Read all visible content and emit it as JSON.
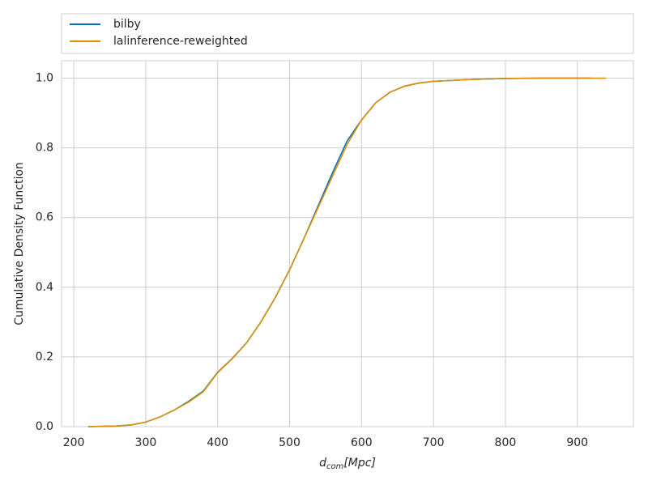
{
  "chart_data": {
    "type": "line",
    "xlabel": {
      "symbol": "d",
      "subscript": "com",
      "unit": "[Mpc]"
    },
    "ylabel": "Cumulative Density Function",
    "xlim": [
      183,
      978
    ],
    "ylim": [
      0,
      1.05
    ],
    "xticks": [
      200,
      300,
      400,
      500,
      600,
      700,
      800,
      900
    ],
    "yticks": [
      {
        "value": 0,
        "label": "0.0"
      },
      0.2,
      0.4,
      0.6,
      0.8,
      {
        "value": 1,
        "label": "1.0"
      }
    ],
    "grid": true,
    "legend": "top",
    "series": [
      {
        "name": "bilby",
        "color": "#0173b2",
        "x": [
          220,
          260,
          280,
          300,
          320,
          340,
          360,
          380,
          400,
          420,
          440,
          460,
          480,
          500,
          520,
          540,
          560,
          580,
          600,
          620,
          640,
          660,
          680,
          700,
          750,
          800,
          850,
          920
        ],
        "values": [
          0,
          0.002,
          0.005,
          0.013,
          0.028,
          0.048,
          0.073,
          0.102,
          0.156,
          0.195,
          0.24,
          0.3,
          0.37,
          0.45,
          0.54,
          0.635,
          0.73,
          0.82,
          0.88,
          0.93,
          0.96,
          0.977,
          0.986,
          0.991,
          0.996,
          0.999,
          1.0,
          1.0
        ]
      },
      {
        "name": "lalinference-reweighted",
        "color": "#de8f05",
        "x": [
          220,
          260,
          280,
          300,
          320,
          340,
          360,
          380,
          400,
          420,
          440,
          460,
          480,
          500,
          520,
          540,
          560,
          580,
          600,
          620,
          640,
          660,
          680,
          700,
          750,
          800,
          850,
          900,
          940
        ],
        "values": [
          0,
          0.002,
          0.005,
          0.013,
          0.028,
          0.048,
          0.071,
          0.1,
          0.155,
          0.194,
          0.24,
          0.3,
          0.37,
          0.45,
          0.54,
          0.63,
          0.72,
          0.81,
          0.88,
          0.93,
          0.96,
          0.977,
          0.986,
          0.991,
          0.996,
          0.999,
          1.0,
          1.0,
          1.0
        ]
      }
    ]
  }
}
